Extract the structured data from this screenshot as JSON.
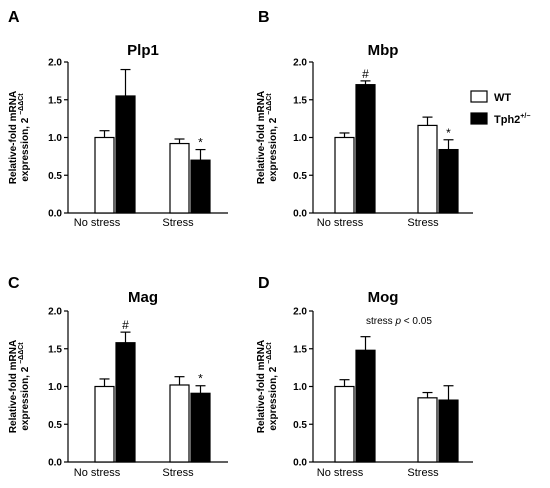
{
  "legend": {
    "items": [
      {
        "label": "WT",
        "superscript": "",
        "fill": "#ffffff"
      },
      {
        "label": "Tph2",
        "superscript": "+/−",
        "fill": "#000000"
      }
    ]
  },
  "y_axis_label": {
    "line1": "Relative-fold mRNA",
    "line2": "expression, 2",
    "superscript": "−ΔΔCt"
  },
  "chart_data": [
    {
      "type": "bar",
      "panel": "A",
      "title": "Plp1",
      "categories": [
        "No stress",
        "Stress"
      ],
      "series": [
        {
          "name": "WT",
          "values": [
            1.0,
            0.92
          ],
          "errors": [
            0.09,
            0.06
          ]
        },
        {
          "name": "Tph2+/−",
          "values": [
            1.55,
            0.7
          ],
          "errors": [
            0.35,
            0.14
          ]
        }
      ],
      "annotations": [
        {
          "category": 1,
          "series": 1,
          "text": "*"
        }
      ],
      "ylim": [
        0,
        2.0
      ],
      "yticks": [
        "0.0",
        "0.5",
        "1.0",
        "1.5",
        "2.0"
      ],
      "note": ""
    },
    {
      "type": "bar",
      "panel": "B",
      "title": "Mbp",
      "categories": [
        "No stress",
        "Stress"
      ],
      "series": [
        {
          "name": "WT",
          "values": [
            1.0,
            1.16
          ],
          "errors": [
            0.06,
            0.11
          ]
        },
        {
          "name": "Tph2+/−",
          "values": [
            1.7,
            0.84
          ],
          "errors": [
            0.05,
            0.13
          ]
        }
      ],
      "annotations": [
        {
          "category": 0,
          "series": 1,
          "text": "#"
        },
        {
          "category": 1,
          "series": 1,
          "text": "*"
        }
      ],
      "ylim": [
        0,
        2.0
      ],
      "yticks": [
        "0.0",
        "0.5",
        "1.0",
        "1.5",
        "2.0"
      ],
      "note": ""
    },
    {
      "type": "bar",
      "panel": "C",
      "title": "Mag",
      "categories": [
        "No stress",
        "Stress"
      ],
      "series": [
        {
          "name": "WT",
          "values": [
            1.0,
            1.02
          ],
          "errors": [
            0.1,
            0.11
          ]
        },
        {
          "name": "Tph2+/−",
          "values": [
            1.58,
            0.91
          ],
          "errors": [
            0.14,
            0.1
          ]
        }
      ],
      "annotations": [
        {
          "category": 0,
          "series": 1,
          "text": "#"
        },
        {
          "category": 1,
          "series": 1,
          "text": "*"
        }
      ],
      "ylim": [
        0,
        2.0
      ],
      "yticks": [
        "0.0",
        "0.5",
        "1.0",
        "1.5",
        "2.0"
      ],
      "note": ""
    },
    {
      "type": "bar",
      "panel": "D",
      "title": "Mog",
      "categories": [
        "No stress",
        "Stress"
      ],
      "series": [
        {
          "name": "WT",
          "values": [
            1.0,
            0.85
          ],
          "errors": [
            0.09,
            0.07
          ]
        },
        {
          "name": "Tph2+/−",
          "values": [
            1.48,
            0.82
          ],
          "errors": [
            0.18,
            0.19
          ]
        }
      ],
      "annotations": [],
      "ylim": [
        0,
        2.0
      ],
      "yticks": [
        "0.0",
        "0.5",
        "1.0",
        "1.5",
        "2.0"
      ],
      "note": {
        "prefix": "stress ",
        "italic": "p",
        "suffix": " < 0.05"
      }
    }
  ]
}
